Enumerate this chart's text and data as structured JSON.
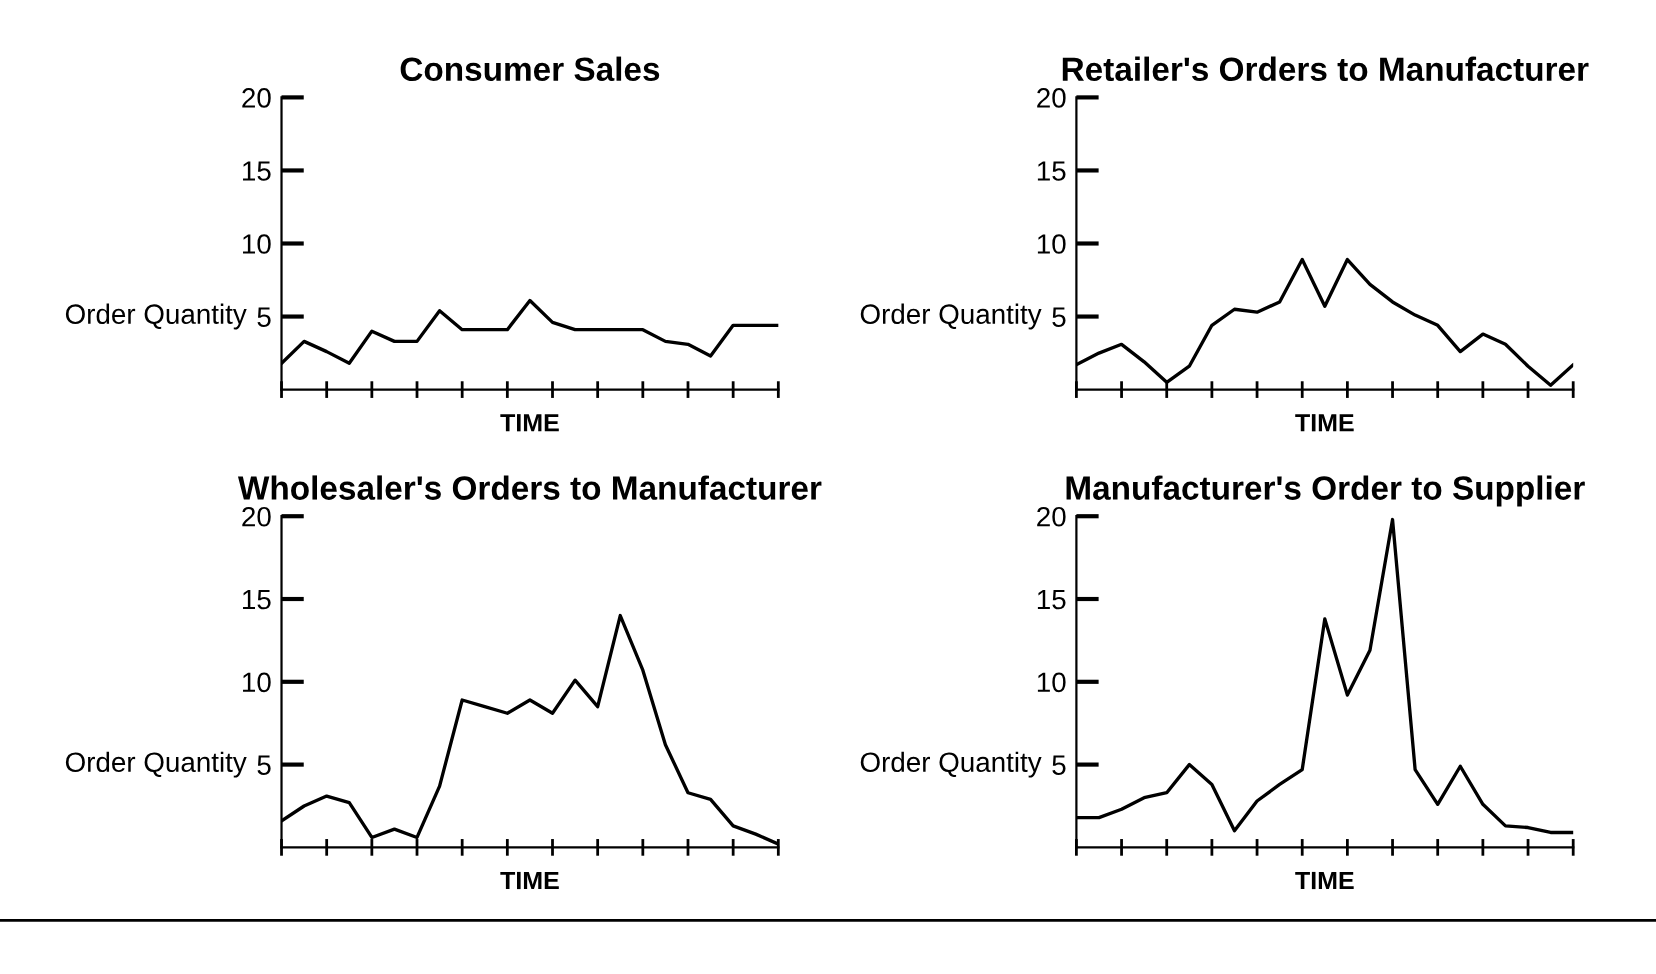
{
  "chart_data": [
    {
      "type": "line",
      "title": "Consumer Sales",
      "xlabel": "TIME",
      "ylabel": "Order Quantity",
      "categories": [
        null,
        null,
        null,
        null,
        null,
        null,
        null,
        null,
        null,
        null,
        null,
        null,
        null,
        null,
        null,
        null,
        null,
        null,
        null,
        null,
        null,
        null,
        null
      ],
      "ylim": [
        0,
        20
      ],
      "yticks": [
        5,
        10,
        15,
        20
      ],
      "color": "#000000",
      "grid": false,
      "values": [
        1.8,
        3.3,
        2.6,
        1.8,
        4.0,
        3.3,
        3.3,
        5.4,
        4.1,
        4.1,
        4.1,
        6.1,
        4.6,
        4.1,
        4.1,
        4.1,
        4.1,
        3.3,
        3.1,
        2.3,
        4.4,
        4.4,
        4.4
      ]
    },
    {
      "type": "line",
      "title": "Retailer's Orders to Manufacturer",
      "xlabel": "TIME",
      "ylabel": "Order Quantity",
      "categories": [
        null,
        null,
        null,
        null,
        null,
        null,
        null,
        null,
        null,
        null,
        null,
        null,
        null,
        null,
        null,
        null,
        null,
        null,
        null,
        null,
        null,
        null,
        null
      ],
      "ylim": [
        0,
        20
      ],
      "yticks": [
        5,
        10,
        15,
        20
      ],
      "color": "#000000",
      "grid": false,
      "values": [
        1.7,
        2.5,
        3.1,
        1.9,
        0.5,
        1.6,
        4.4,
        5.5,
        5.3,
        6.0,
        8.9,
        5.7,
        8.9,
        7.2,
        6.0,
        5.1,
        4.4,
        2.6,
        3.8,
        3.1,
        1.6,
        0.3,
        1.7
      ]
    },
    {
      "type": "line",
      "title": "Wholesaler's Orders to Manufacturer",
      "xlabel": "TIME",
      "ylabel": "Order Quantity",
      "categories": [
        null,
        null,
        null,
        null,
        null,
        null,
        null,
        null,
        null,
        null,
        null,
        null,
        null,
        null,
        null,
        null,
        null,
        null,
        null,
        null,
        null,
        null,
        null
      ],
      "ylim": [
        0,
        20
      ],
      "yticks": [
        5,
        10,
        15,
        20
      ],
      "color": "#000000",
      "grid": false,
      "values": [
        1.6,
        2.5,
        3.1,
        2.7,
        0.6,
        1.1,
        0.6,
        3.7,
        8.9,
        8.5,
        8.1,
        8.9,
        8.1,
        10.1,
        8.5,
        14.0,
        10.7,
        6.2,
        3.3,
        2.9,
        1.3,
        0.8,
        0.2
      ]
    },
    {
      "type": "line",
      "title": "Manufacturer's Order to Supplier",
      "xlabel": "TIME",
      "ylabel": "Order Quantity",
      "categories": [
        null,
        null,
        null,
        null,
        null,
        null,
        null,
        null,
        null,
        null,
        null,
        null,
        null,
        null,
        null,
        null,
        null,
        null,
        null,
        null,
        null,
        null,
        null
      ],
      "ylim": [
        0,
        20
      ],
      "yticks": [
        5,
        10,
        15,
        20
      ],
      "color": "#000000",
      "grid": false,
      "values": [
        1.8,
        1.8,
        2.3,
        3.0,
        3.3,
        5.0,
        3.8,
        1.0,
        2.8,
        3.8,
        4.7,
        13.8,
        9.2,
        11.9,
        19.8,
        4.7,
        2.6,
        4.9,
        2.6,
        1.3,
        1.2,
        0.9,
        0.9
      ]
    }
  ]
}
